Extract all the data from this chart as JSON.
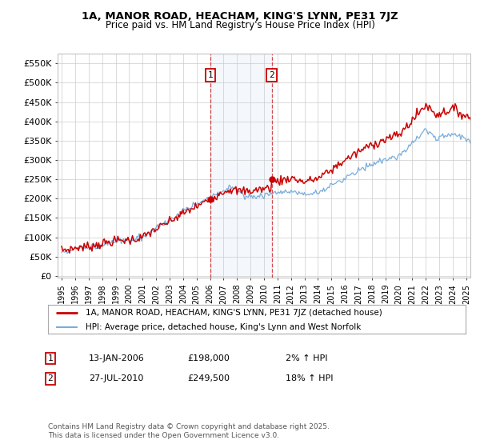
{
  "title": "1A, MANOR ROAD, HEACHAM, KING'S LYNN, PE31 7JZ",
  "subtitle": "Price paid vs. HM Land Registry's House Price Index (HPI)",
  "yticks": [
    0,
    50000,
    100000,
    150000,
    200000,
    250000,
    300000,
    350000,
    400000,
    450000,
    500000,
    550000
  ],
  "ylim": [
    -5000,
    575000
  ],
  "legend_line1": "1A, MANOR ROAD, HEACHAM, KING'S LYNN, PE31 7JZ (detached house)",
  "legend_line2": "HPI: Average price, detached house, King's Lynn and West Norfolk",
  "footnote": "Contains HM Land Registry data © Crown copyright and database right 2025.\nThis data is licensed under the Open Government Licence v3.0.",
  "transaction1_date": "13-JAN-2006",
  "transaction1_price": 198000,
  "transaction1_hpi": "2% ↑ HPI",
  "transaction2_date": "27-JUL-2010",
  "transaction2_price": 249500,
  "transaction2_hpi": "18% ↑ HPI",
  "marker1_x": 2006.04,
  "marker2_x": 2010.57,
  "marker1_y": 198000,
  "marker2_y": 249500,
  "line_color": "#cc0000",
  "hpi_color": "#7aaddb",
  "background_color": "#ffffff",
  "grid_color": "#cccccc",
  "plot_bg_color": "#ffffff",
  "xmin": 1994.7,
  "xmax": 2025.3
}
